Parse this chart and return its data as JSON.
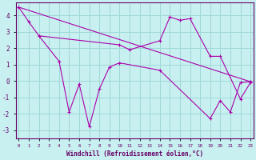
{
  "background_color": "#c8f0f0",
  "grid_color": "#a0d8d8",
  "line_color": "#aa00aa",
  "xlabel": "Windchill (Refroidissement éolien,°C)",
  "xlabel_color": "#660066",
  "tick_color": "#660066",
  "x_ticks": [
    0,
    1,
    2,
    3,
    4,
    5,
    6,
    7,
    8,
    9,
    10,
    11,
    12,
    13,
    14,
    15,
    16,
    17,
    18,
    19,
    20,
    21,
    22,
    23
  ],
  "ylim": [
    -3.5,
    4.8
  ],
  "xlim": [
    -0.3,
    23.3
  ],
  "line1_x": [
    0,
    1,
    2,
    10,
    11,
    14,
    15,
    16,
    17,
    19,
    20,
    22,
    23
  ],
  "line1_y": [
    4.5,
    3.6,
    2.75,
    2.2,
    1.9,
    2.45,
    3.9,
    3.7,
    3.8,
    1.5,
    1.5,
    -1.1,
    -0.1
  ],
  "line2_x": [
    0,
    23
  ],
  "line2_y": [
    4.5,
    -0.05
  ],
  "line3_x": [
    2,
    4,
    5,
    6,
    7,
    8,
    9,
    10,
    14,
    19,
    20,
    21,
    22,
    23
  ],
  "line3_y": [
    2.75,
    1.2,
    -1.9,
    -0.2,
    -2.8,
    -0.5,
    0.85,
    1.1,
    0.65,
    -2.3,
    -1.2,
    -1.9,
    -0.1,
    -0.05
  ],
  "yticks": [
    -3,
    -2,
    -1,
    0,
    1,
    2,
    3,
    4
  ]
}
